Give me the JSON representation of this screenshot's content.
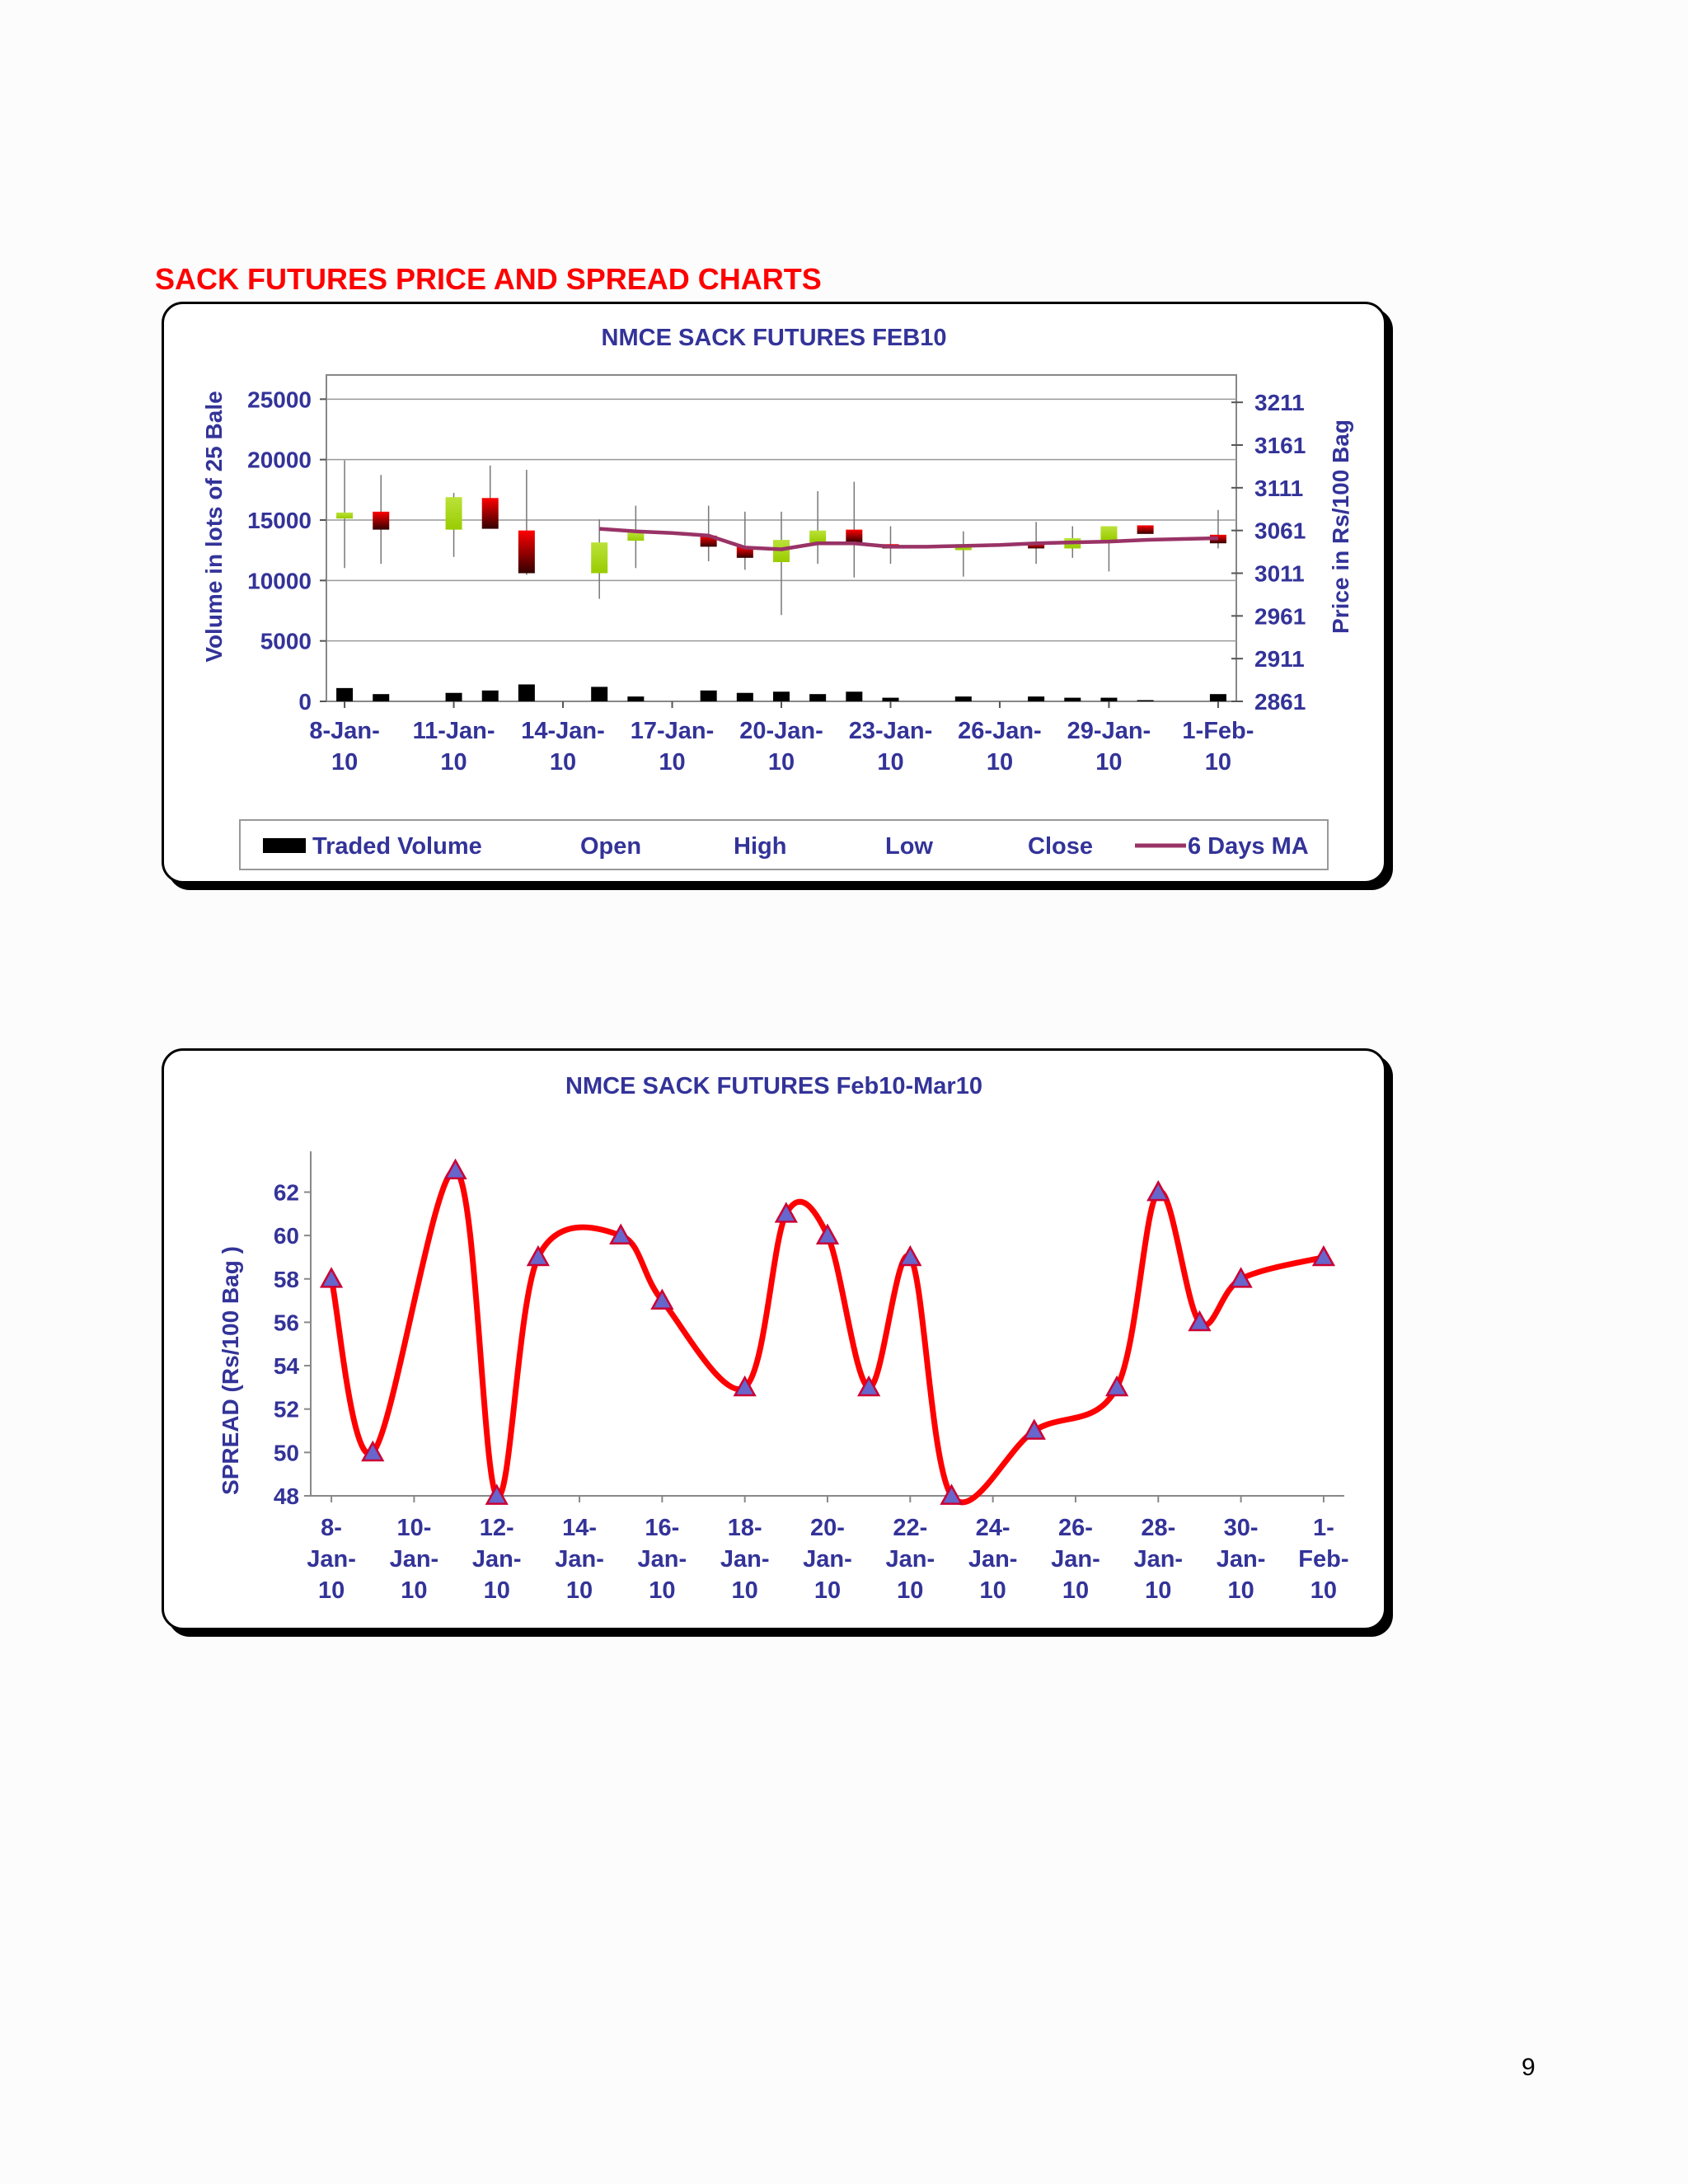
{
  "page": {
    "section_title": "SACK FUTURES PRICE AND SPREAD CHARTS",
    "page_number": "9"
  },
  "colors": {
    "title_red": "#ff0000",
    "text_navy": "#333399",
    "bullish": "#99cc00",
    "bearish": "#ff0000",
    "volume": "#000000",
    "ma_line": "#993366",
    "spread_line": "#ff0000",
    "marker": "#6666cc"
  },
  "chart_data": [
    {
      "type": "candlestick",
      "title": "NMCE SACK FUTURES FEB10",
      "ylabel_left": "Volume in lots of 25 Bale",
      "ylabel_right": "Price in Rs/100 Bag",
      "y_left_ticks": [
        "0",
        "5000",
        "10000",
        "15000",
        "20000",
        "25000"
      ],
      "ylim_left": [
        0,
        27000
      ],
      "y_right_ticks": [
        "2861",
        "2911",
        "2961",
        "3011",
        "3061",
        "3111",
        "3161",
        "3211"
      ],
      "ylim_right": [
        2861,
        3243
      ],
      "grid": true,
      "legend_position": "bottom",
      "x_ticks": [
        {
          "line1": "8-Jan-",
          "line2": "10",
          "i": 0
        },
        {
          "line1": "11-Jan-",
          "line2": "10",
          "i": 3
        },
        {
          "line1": "14-Jan-",
          "line2": "10",
          "i": 6
        },
        {
          "line1": "17-Jan-",
          "line2": "10",
          "i": 9
        },
        {
          "line1": "20-Jan-",
          "line2": "10",
          "i": 12
        },
        {
          "line1": "23-Jan-",
          "line2": "10",
          "i": 15
        },
        {
          "line1": "26-Jan-",
          "line2": "10",
          "i": 18
        },
        {
          "line1": "29-Jan-",
          "line2": "10",
          "i": 21
        },
        {
          "line1": "1-Feb-",
          "line2": "10",
          "i": 24
        }
      ],
      "n_days": 25,
      "legend": [
        "Traded Volume",
        "Open",
        "High",
        "Low",
        "Close",
        "6 Days MA"
      ],
      "days": [
        {
          "i": 0,
          "open": 3075,
          "high": 3143,
          "low": 3017,
          "close": 3082,
          "volume": 1100
        },
        {
          "i": 1,
          "open": 3083,
          "high": 3126,
          "low": 3022,
          "close": 3062,
          "volume": 600
        },
        {
          "i": 3,
          "open": 3062,
          "high": 3105,
          "low": 3030,
          "close": 3100,
          "volume": 700
        },
        {
          "i": 4,
          "open": 3099,
          "high": 3137,
          "low": 3076,
          "close": 3063,
          "volume": 900
        },
        {
          "i": 5,
          "open": 3061,
          "high": 3132,
          "low": 3009,
          "close": 3011,
          "volume": 1400
        },
        {
          "i": 7,
          "open": 3011,
          "high": 3074,
          "low": 2981,
          "close": 3047,
          "volume": 1200
        },
        {
          "i": 8,
          "open": 3049,
          "high": 3090,
          "low": 3017,
          "close": 3059,
          "volume": 400
        },
        {
          "i": 10,
          "open": 3055,
          "high": 3090,
          "low": 3025,
          "close": 3042,
          "volume": 900
        },
        {
          "i": 11,
          "open": 3042,
          "high": 3083,
          "low": 3015,
          "close": 3029,
          "volume": 700
        },
        {
          "i": 12,
          "open": 3024,
          "high": 3083,
          "low": 2962,
          "close": 3050,
          "volume": 800
        },
        {
          "i": 13,
          "open": 3047,
          "high": 3107,
          "low": 3022,
          "close": 3061,
          "volume": 600
        },
        {
          "i": 14,
          "open": 3062,
          "high": 3118,
          "low": 3006,
          "close": 3047,
          "volume": 800
        },
        {
          "i": 15,
          "open": 3045,
          "high": 3066,
          "low": 3022,
          "close": 3040,
          "volume": 300
        },
        {
          "i": 17,
          "open": 3038,
          "high": 3060,
          "low": 3007,
          "close": 3045,
          "volume": 400
        },
        {
          "i": 19,
          "open": 3045,
          "high": 3071,
          "low": 3022,
          "close": 3040,
          "volume": 400
        },
        {
          "i": 20,
          "open": 3040,
          "high": 3066,
          "low": 3029,
          "close": 3052,
          "volume": 300
        },
        {
          "i": 21,
          "open": 3050,
          "high": 3066,
          "low": 3013,
          "close": 3066,
          "volume": 300
        },
        {
          "i": 22,
          "open": 3067,
          "high": 3066,
          "low": 3059,
          "close": 3057,
          "volume": 100
        },
        {
          "i": 24,
          "open": 3056,
          "high": 3085,
          "low": 3040,
          "close": 3046,
          "volume": 600
        }
      ],
      "ma": [
        {
          "i": 7,
          "v": 3063
        },
        {
          "i": 8,
          "v": 3060
        },
        {
          "i": 9,
          "v": 3058
        },
        {
          "i": 10,
          "v": 3055
        },
        {
          "i": 11,
          "v": 3041
        },
        {
          "i": 12,
          "v": 3039
        },
        {
          "i": 13,
          "v": 3046
        },
        {
          "i": 14,
          "v": 3046
        },
        {
          "i": 15,
          "v": 3042
        },
        {
          "i": 16,
          "v": 3042
        },
        {
          "i": 17,
          "v": 3043
        },
        {
          "i": 18,
          "v": 3044
        },
        {
          "i": 19,
          "v": 3046
        },
        {
          "i": 20,
          "v": 3047
        },
        {
          "i": 21,
          "v": 3048
        },
        {
          "i": 22,
          "v": 3050
        },
        {
          "i": 23,
          "v": 3051
        },
        {
          "i": 24,
          "v": 3052
        }
      ]
    },
    {
      "type": "line",
      "title": "NMCE SACK FUTURES Feb10-Mar10",
      "ylabel": "SPREAD (Rs/100 Bag    )",
      "y_ticks": [
        "48",
        "50",
        "52",
        "54",
        "56",
        "58",
        "60",
        "62"
      ],
      "ylim": [
        48,
        63.5
      ],
      "grid": false,
      "x_ticks": [
        {
          "line1": "8-",
          "line2": "Jan-",
          "line3": "10",
          "i": 0
        },
        {
          "line1": "10-",
          "line2": "Jan-",
          "line3": "10",
          "i": 2
        },
        {
          "line1": "12-",
          "line2": "Jan-",
          "line3": "10",
          "i": 4
        },
        {
          "line1": "14-",
          "line2": "Jan-",
          "line3": "10",
          "i": 6
        },
        {
          "line1": "16-",
          "line2": "Jan-",
          "line3": "10",
          "i": 8
        },
        {
          "line1": "18-",
          "line2": "Jan-",
          "line3": "10",
          "i": 10
        },
        {
          "line1": "20-",
          "line2": "Jan-",
          "line3": "10",
          "i": 12
        },
        {
          "line1": "22-",
          "line2": "Jan-",
          "line3": "10",
          "i": 14
        },
        {
          "line1": "24-",
          "line2": "Jan-",
          "line3": "10",
          "i": 16
        },
        {
          "line1": "26-",
          "line2": "Jan-",
          "line3": "10",
          "i": 18
        },
        {
          "line1": "28-",
          "line2": "Jan-",
          "line3": "10",
          "i": 20
        },
        {
          "line1": "30-",
          "line2": "Jan-",
          "line3": "10",
          "i": 22
        },
        {
          "line1": "1-",
          "line2": "Feb-",
          "line3": "10",
          "i": 24
        }
      ],
      "n_days": 25,
      "points": [
        {
          "i": 0,
          "v": 58
        },
        {
          "i": 1,
          "v": 50
        },
        {
          "i": 3,
          "v": 63
        },
        {
          "i": 4,
          "v": 48
        },
        {
          "i": 5,
          "v": 59
        },
        {
          "i": 7,
          "v": 60
        },
        {
          "i": 8,
          "v": 57
        },
        {
          "i": 10,
          "v": 53
        },
        {
          "i": 11,
          "v": 61
        },
        {
          "i": 12,
          "v": 60
        },
        {
          "i": 13,
          "v": 53
        },
        {
          "i": 14,
          "v": 59
        },
        {
          "i": 15,
          "v": 48
        },
        {
          "i": 17,
          "v": 51
        },
        {
          "i": 19,
          "v": 53
        },
        {
          "i": 20,
          "v": 62
        },
        {
          "i": 21,
          "v": 56
        },
        {
          "i": 22,
          "v": 58
        },
        {
          "i": 24,
          "v": 59
        }
      ]
    }
  ]
}
